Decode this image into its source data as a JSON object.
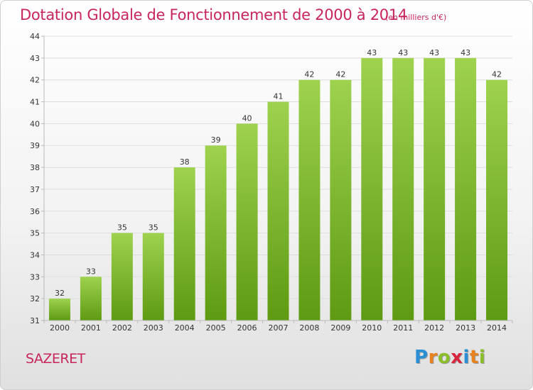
{
  "header": {
    "title": "Dotation Globale de Fonctionnement de 2000 à 2014",
    "subtitle": "(en milliers d'€)"
  },
  "commune": "SAZERET",
  "logo": {
    "text": "Proxiti",
    "letters": [
      {
        "char": "P",
        "color": "#2b8fd6"
      },
      {
        "char": "r",
        "color": "#e8821e"
      },
      {
        "char": "o",
        "color": "#8bbf2a"
      },
      {
        "char": "x",
        "color": "#d7263d"
      },
      {
        "char": "i",
        "color": "#2b8fd6"
      },
      {
        "char": "t",
        "color": "#e8821e"
      },
      {
        "char": "i",
        "color": "#8bbf2a"
      }
    ]
  },
  "colors": {
    "accent": "#c8265a",
    "bar_top": "#9ed24f",
    "bar_bottom": "#5e9a12",
    "grid": "#dddddd",
    "axis": "#bbbbbb"
  },
  "chart_data": {
    "type": "bar",
    "title": "Dotation Globale de Fonctionnement de 2000 à 2014",
    "subtitle": "(en milliers d'€)",
    "xlabel": "",
    "ylabel": "",
    "categories": [
      "2000",
      "2001",
      "2002",
      "2003",
      "2004",
      "2005",
      "2006",
      "2007",
      "2008",
      "2009",
      "2010",
      "2011",
      "2012",
      "2013",
      "2014"
    ],
    "values": [
      32,
      33,
      35,
      35,
      38,
      39,
      40,
      41,
      42,
      42,
      43,
      43,
      43,
      43,
      42
    ],
    "ylim": [
      31,
      44
    ],
    "yticks": [
      31,
      32,
      33,
      34,
      35,
      36,
      37,
      38,
      39,
      40,
      41,
      42,
      43,
      44
    ],
    "grid": true,
    "legend": "none"
  }
}
